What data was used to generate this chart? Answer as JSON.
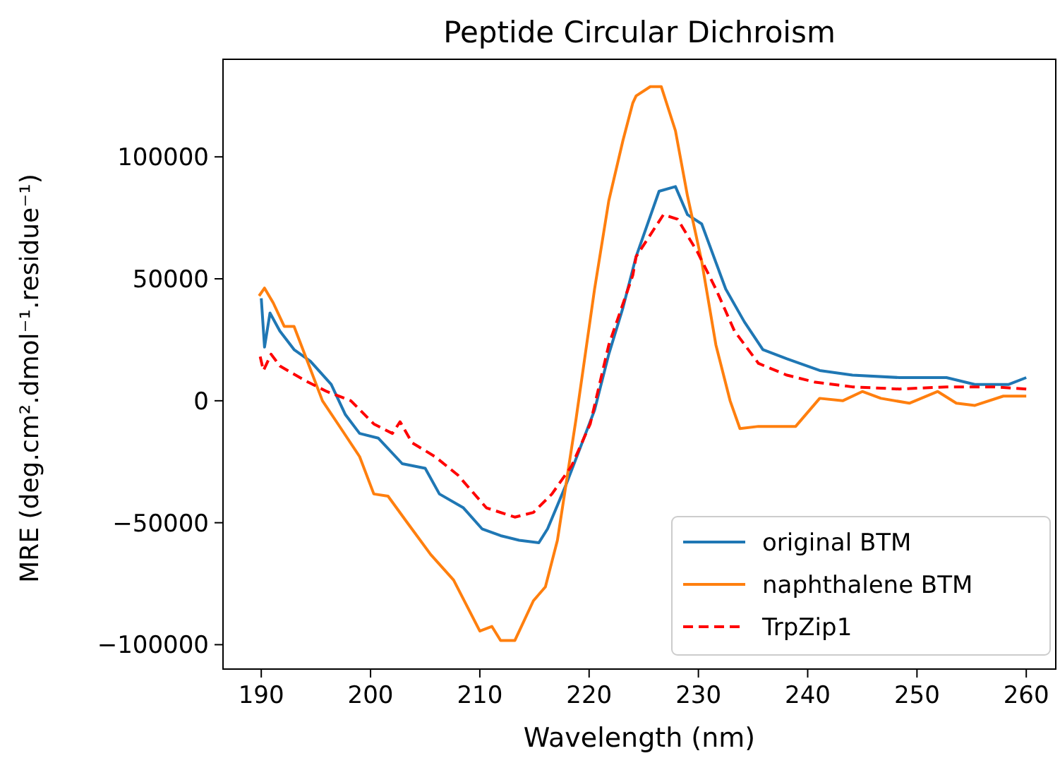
{
  "chart_data": {
    "type": "line",
    "title": "Peptide Circular Dichroism",
    "xlabel": "Wavelength (nm)",
    "ylabel": "MRE (deg.cm².dmol⁻¹.residue⁻¹)",
    "xlim": [
      186.5,
      262.7
    ],
    "xticks": [
      190,
      200,
      210,
      220,
      230,
      240,
      250,
      260
    ],
    "ylim": [
      -110000,
      140000
    ],
    "yticks": [
      -100000,
      -50000,
      0,
      50000,
      100000
    ],
    "grid": false,
    "legend": "bottom right",
    "series": [
      {
        "name": "original BTM",
        "color": "#1f77b4",
        "line_style": "solid",
        "x": [
          190,
          190.3,
          190.8,
          191.7,
          193,
          194.5,
          196.4,
          197.7,
          199,
          200.7,
          202.9,
          205,
          206.3,
          208.5,
          210.2,
          211.9,
          213.6,
          215.4,
          216.2,
          217.9,
          219.2,
          220.5,
          221.8,
          223.1,
          224.3,
          226.4,
          227.9,
          229,
          230.3,
          232.5,
          234.2,
          235.9,
          238.1,
          241.1,
          244.1,
          248.4,
          252.7,
          255.3,
          258.4,
          260
        ],
        "values": [
          42000,
          22000,
          36000,
          28600,
          21000,
          16200,
          6700,
          -5700,
          -13400,
          -15300,
          -25800,
          -27700,
          -38200,
          -43900,
          -52500,
          -55300,
          -57200,
          -58200,
          -52500,
          -34300,
          -19100,
          -3800,
          19100,
          38200,
          59100,
          85900,
          87800,
          76300,
          72500,
          45800,
          32400,
          21000,
          17200,
          12400,
          10500,
          9500,
          9500,
          6700,
          6700,
          9500
        ]
      },
      {
        "name": "naphthalene BTM",
        "color": "#ff7f0e",
        "line_style": "solid",
        "x": [
          189.8,
          190.3,
          191.1,
          192.1,
          193,
          194.3,
          195.6,
          197.3,
          199,
          200.3,
          201.6,
          203.3,
          205.5,
          207.6,
          210,
          211.1,
          211.9,
          213.2,
          214.9,
          216,
          217.1,
          218.8,
          220.5,
          221.8,
          223.1,
          224,
          224.3,
          225.6,
          226.6,
          227.9,
          229,
          230.3,
          231.6,
          232.9,
          233.8,
          235.5,
          238.9,
          241.1,
          243.2,
          245,
          246.7,
          249.3,
          251.9,
          253.6,
          255.3,
          257.9,
          260
        ],
        "values": [
          43000,
          46200,
          40100,
          30500,
          30500,
          15300,
          0,
          -11400,
          -22900,
          -38200,
          -39100,
          -49600,
          -63000,
          -73500,
          -94400,
          -92500,
          -98300,
          -98300,
          -82000,
          -76300,
          -57200,
          -7600,
          45800,
          82000,
          106800,
          122100,
          125000,
          128800,
          128800,
          110700,
          84000,
          57200,
          22900,
          0,
          -11400,
          -10500,
          -10500,
          1000,
          0,
          3800,
          1000,
          -1000,
          3800,
          -1000,
          -1900,
          1900,
          1900
        ]
      },
      {
        "name": "TrpZip1",
        "color": "#ff0000",
        "line_style": "dashed",
        "x": [
          189.9,
          190.2,
          190.9,
          191.7,
          192.8,
          194.3,
          196,
          198.2,
          200.3,
          202,
          202.7,
          203.8,
          205.9,
          208,
          210.6,
          213.2,
          214.9,
          216.6,
          218.4,
          220.1,
          221.8,
          224,
          224.3,
          226.8,
          228.1,
          229.9,
          231.6,
          233.3,
          235.5,
          238.1,
          240.7,
          244.1,
          248.4,
          252.7,
          257.1,
          260
        ],
        "values": [
          18100,
          12400,
          19100,
          14300,
          11400,
          7600,
          3800,
          0,
          -9500,
          -13400,
          -8600,
          -17200,
          -22900,
          -30500,
          -43900,
          -47700,
          -45800,
          -38200,
          -26700,
          -9500,
          22900,
          51500,
          59100,
          76300,
          74400,
          61100,
          45800,
          28600,
          15300,
          10500,
          7600,
          5700,
          4800,
          5700,
          5700,
          4800
        ]
      }
    ]
  }
}
